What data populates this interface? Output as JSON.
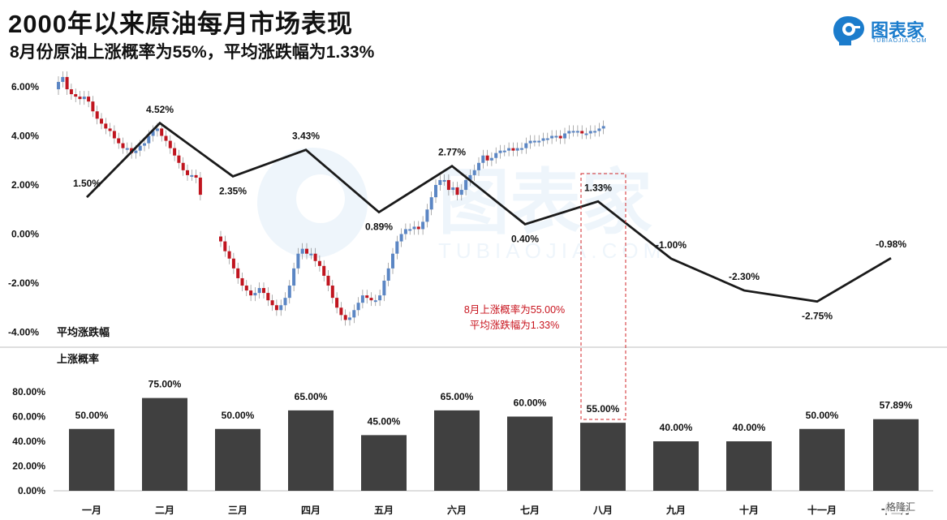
{
  "header": {
    "title": "2000年以来原油每月市场表现",
    "subtitle": "8月份原油上涨概率为55%，平均涨跌幅为1.33%"
  },
  "logo": {
    "text": "图表家",
    "sub": "TUBIAOJIA.COM",
    "watermark": "图表家",
    "watermark_sub": "TUBIAOJIA.COM"
  },
  "footer_watermark": "格隆汇",
  "colors": {
    "line": "#1a1a1a",
    "bar": "#404040",
    "up": "#5b86c4",
    "down": "#c0151f",
    "highlight": "#d0262a"
  },
  "chart_data": [
    {
      "type": "line",
      "section_label": "平均涨跌幅",
      "categories": [
        "一月",
        "二月",
        "三月",
        "四月",
        "五月",
        "六月",
        "七月",
        "八月",
        "九月",
        "十月",
        "十一月",
        "十二月"
      ],
      "values": [
        1.5,
        4.52,
        2.35,
        3.43,
        0.89,
        2.77,
        0.4,
        1.33,
        -1.0,
        -2.3,
        -2.75,
        -0.98
      ],
      "data_labels": [
        "1.50%",
        "4.52%",
        "2.35%",
        "3.43%",
        "0.89%",
        "2.77%",
        "0.40%",
        "1.33%",
        "-1.00%",
        "-2.30%",
        "-2.75%",
        "-0.98%"
      ],
      "y_ticks": [
        6,
        4,
        2,
        0,
        -2,
        -4
      ],
      "y_tick_labels": [
        "6.00%",
        "4.00%",
        "2.00%",
        "0.00%",
        "-2.00%",
        "-4.00%"
      ],
      "ylim": [
        -4,
        6
      ],
      "annotation": [
        "8月上涨概率为55.00%",
        "平均涨跌幅为1.33%"
      ],
      "highlight_category": "八月"
    },
    {
      "type": "bar",
      "section_label": "上涨概率",
      "categories": [
        "一月",
        "二月",
        "三月",
        "四月",
        "五月",
        "六月",
        "七月",
        "八月",
        "九月",
        "十月",
        "十一月",
        "十二月"
      ],
      "values": [
        50.0,
        75.0,
        50.0,
        65.0,
        45.0,
        65.0,
        60.0,
        55.0,
        40.0,
        40.0,
        50.0,
        57.89
      ],
      "data_labels": [
        "50.00%",
        "75.00%",
        "50.00%",
        "65.00%",
        "45.00%",
        "65.00%",
        "60.00%",
        "55.00%",
        "40.00%",
        "40.00%",
        "50.00%",
        "57.89%"
      ],
      "y_ticks": [
        0,
        20,
        40,
        60,
        80
      ],
      "y_tick_labels": [
        "0.00%",
        "20.00%",
        "40.00%",
        "60.00%",
        "80.00%"
      ],
      "ylim": [
        0,
        80
      ],
      "highlight_category": "八月"
    }
  ],
  "background_candles": {
    "note": "decorative price path in background, values in % units",
    "segments": [
      {
        "start": 5.9,
        "steps": [
          0.3,
          0.2,
          -0.5,
          -0.2,
          -0.1,
          -0.1,
          0.1,
          -0.2,
          -0.4,
          -0.3,
          -0.2,
          -0.2,
          -0.1,
          -0.3,
          -0.2,
          -0.2,
          0.0,
          -0.2,
          0.1,
          0.2,
          0.1,
          0.3,
          0.2,
          0.1,
          -0.3,
          -0.2,
          -0.3,
          -0.3,
          -0.3,
          -0.3,
          -0.2,
          0.0,
          -0.1,
          -0.7
        ]
      },
      {
        "start": -0.1,
        "steps": [
          -0.2,
          -0.4,
          -0.3,
          -0.4,
          -0.4,
          -0.3,
          -0.2,
          -0.2,
          0.1,
          0.2,
          -0.2,
          -0.3,
          -0.2,
          -0.2,
          0.2,
          0.3,
          0.5,
          0.7,
          0.6,
          0.2,
          -0.2,
          0.0,
          -0.3,
          -0.2,
          -0.4,
          -0.4,
          -0.5,
          -0.4,
          -0.3,
          -0.2,
          0.1,
          0.3,
          0.3,
          0.3,
          -0.1,
          -0.1,
          0.0,
          0.2,
          0.6,
          0.5,
          0.6,
          0.5,
          0.3,
          0.2,
          0.0,
          0.1,
          -0.1,
          0.3,
          0.5,
          0.5,
          0.5,
          0.2,
          0.0,
          -0.4,
          0.1,
          -0.3,
          0.2,
          0.4,
          0.2,
          0.2,
          0.3,
          0.3,
          -0.2,
          0.1,
          0.2,
          0.1,
          0.0,
          0.1,
          -0.1,
          0.1,
          0.0,
          0.2,
          0.1,
          0.0,
          0.0,
          0.1,
          0.0,
          0.1,
          0.0,
          -0.1,
          0.2,
          0.1,
          0.0,
          0.0,
          -0.1,
          0.0,
          0.1,
          0.0,
          0.1,
          0.1
        ]
      }
    ]
  }
}
